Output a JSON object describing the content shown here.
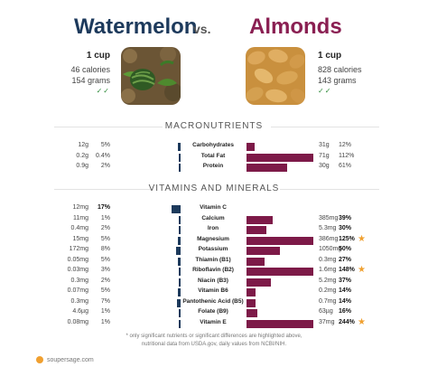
{
  "header": {
    "left_title": "Watermelon",
    "vs": "vs.",
    "right_title": "Almonds"
  },
  "left_info": {
    "serving": "1 cup",
    "calories": "46 calories",
    "grams": "154 grams"
  },
  "right_info": {
    "serving": "1 cup",
    "calories": "828 calories",
    "grams": "143 grams"
  },
  "sections": {
    "macros": "MACRONUTRIENTS",
    "vitamins": "VITAMINS AND MINERALS"
  },
  "footnote": {
    "line1": "* only significant nutrients or significant differences are highlighted above,",
    "line2": "nutritional data from USDA.gov, daily values from NCBI/NIH."
  },
  "logo_text": "soupersage.com",
  "colors": {
    "left_accent": "#1d3a5c",
    "right_accent": "#8a1f52",
    "star": "#f0a030"
  },
  "chart_data": {
    "type": "bar",
    "orientation": "horizontal-diverging",
    "series": [
      {
        "name": "Watermelon"
      },
      {
        "name": "Almonds"
      }
    ],
    "macros": [
      {
        "name": "Carbohydrates",
        "left_value": "12g",
        "left_pct": "5%",
        "left_frac": 0.05,
        "right_value": "31g",
        "right_pct": "12%",
        "right_frac": 0.12,
        "star": false
      },
      {
        "name": "Total Fat",
        "left_value": "0.2g",
        "left_pct": "0.4%",
        "left_frac": 0.004,
        "right_value": "71g",
        "right_pct": "112%",
        "right_frac": 1.0,
        "star": false
      },
      {
        "name": "Protein",
        "left_value": "0.9g",
        "left_pct": "2%",
        "left_frac": 0.02,
        "right_value": "30g",
        "right_pct": "61%",
        "right_frac": 0.61,
        "star": false
      }
    ],
    "vitamins": [
      {
        "name": "Vitamin C",
        "left_value": "12mg",
        "left_pct": "17%",
        "left_frac": 0.17,
        "left_bold": true,
        "right_value": "",
        "right_pct": "",
        "right_frac": 0,
        "star": false
      },
      {
        "name": "Calcium",
        "left_value": "11mg",
        "left_pct": "1%",
        "left_frac": 0.01,
        "right_value": "385mg",
        "right_pct": "39%",
        "right_frac": 0.39,
        "right_bold": true,
        "star": false
      },
      {
        "name": "Iron",
        "left_value": "0.4mg",
        "left_pct": "2%",
        "left_frac": 0.02,
        "right_value": "5.3mg",
        "right_pct": "30%",
        "right_frac": 0.3,
        "right_bold": true,
        "star": false
      },
      {
        "name": "Magnesium",
        "left_value": "15mg",
        "left_pct": "5%",
        "left_frac": 0.05,
        "right_value": "386mg",
        "right_pct": "125%",
        "right_frac": 1.0,
        "right_bold": true,
        "star": true
      },
      {
        "name": "Potassium",
        "left_value": "172mg",
        "left_pct": "8%",
        "left_frac": 0.08,
        "right_value": "1050mg",
        "right_pct": "50%",
        "right_frac": 0.5,
        "right_bold": true,
        "star": false
      },
      {
        "name": "Thiamin (B1)",
        "left_value": "0.05mg",
        "left_pct": "5%",
        "left_frac": 0.05,
        "right_value": "0.3mg",
        "right_pct": "27%",
        "right_frac": 0.27,
        "right_bold": true,
        "star": false
      },
      {
        "name": "Riboflavin (B2)",
        "left_value": "0.03mg",
        "left_pct": "3%",
        "left_frac": 0.03,
        "right_value": "1.6mg",
        "right_pct": "148%",
        "right_frac": 1.0,
        "right_bold": true,
        "star": true
      },
      {
        "name": "Niacin (B3)",
        "left_value": "0.3mg",
        "left_pct": "2%",
        "left_frac": 0.02,
        "right_value": "5.2mg",
        "right_pct": "37%",
        "right_frac": 0.37,
        "right_bold": true,
        "star": false
      },
      {
        "name": "Vitamin B6",
        "left_value": "0.07mg",
        "left_pct": "5%",
        "left_frac": 0.05,
        "right_value": "0.2mg",
        "right_pct": "14%",
        "right_frac": 0.14,
        "right_bold": true,
        "star": false
      },
      {
        "name": "Pantothenic Acid (B5)",
        "left_value": "0.3mg",
        "left_pct": "7%",
        "left_frac": 0.07,
        "right_value": "0.7mg",
        "right_pct": "14%",
        "right_frac": 0.14,
        "right_bold": true,
        "star": false
      },
      {
        "name": "Folate (B9)",
        "left_value": "4.6µg",
        "left_pct": "1%",
        "left_frac": 0.01,
        "right_value": "63µg",
        "right_pct": "16%",
        "right_frac": 0.16,
        "right_bold": true,
        "star": false
      },
      {
        "name": "Vitamin E",
        "left_value": "0.08mg",
        "left_pct": "1%",
        "left_frac": 0.01,
        "right_value": "37mg",
        "right_pct": "244%",
        "right_frac": 1.0,
        "right_bold": true,
        "star": true
      }
    ]
  }
}
